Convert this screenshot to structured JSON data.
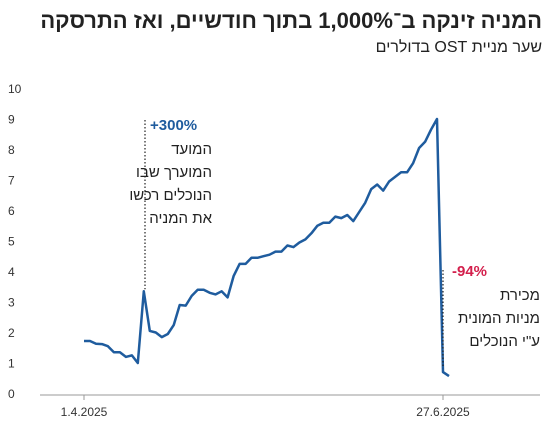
{
  "chart_data": {
    "type": "line",
    "title": "המניה זינקה ב־1,000% בתוך חודשיים, ואז התרסקה",
    "subtitle": "שער מניית OST בדולרים",
    "categories": [
      "1.4.2025",
      null,
      null,
      null,
      null,
      null,
      null,
      null,
      null,
      null,
      null,
      null,
      null,
      null,
      null,
      null,
      null,
      null,
      null,
      null,
      null,
      null,
      null,
      null,
      null,
      null,
      null,
      null,
      null,
      null,
      null,
      null,
      null,
      null,
      null,
      null,
      null,
      null,
      null,
      null,
      null,
      null,
      null,
      null,
      null,
      null,
      null,
      null,
      null,
      null,
      null,
      null,
      null,
      null,
      null,
      null,
      null,
      null,
      null,
      null,
      "27.6.2025",
      null
    ],
    "values": [
      1.77,
      1.77,
      1.68,
      1.67,
      1.6,
      1.4,
      1.4,
      1.25,
      1.3,
      1.05,
      3.4,
      2.1,
      2.05,
      1.9,
      2.0,
      2.3,
      2.95,
      2.93,
      3.25,
      3.45,
      3.45,
      3.35,
      3.3,
      3.4,
      3.2,
      3.9,
      4.3,
      4.3,
      4.5,
      4.5,
      4.55,
      4.6,
      4.7,
      4.7,
      4.9,
      4.85,
      5.0,
      5.1,
      5.3,
      5.55,
      5.65,
      5.65,
      5.85,
      5.8,
      5.9,
      5.7,
      6.0,
      6.3,
      6.75,
      6.9,
      6.7,
      7.0,
      7.15,
      7.3,
      7.3,
      7.6,
      8.1,
      8.3,
      8.7,
      9.05,
      0.75,
      0.62
    ],
    "color": "#1f5c9e",
    "ylim": [
      0,
      10
    ],
    "yticks": [
      0,
      1,
      2,
      3,
      4,
      5,
      6,
      7,
      8,
      9,
      10
    ],
    "annotations": [
      {
        "label": "+300%",
        "color": "#1f5c9e",
        "lines": [
          "המועד",
          "המוערך שבו",
          "הנוכלים רכשו",
          "את המניה"
        ]
      },
      {
        "label": "-94%",
        "color": "#d31f4c",
        "lines": [
          "מכירת",
          "מניות המונית",
          "ע\"י הנוכלים"
        ]
      }
    ]
  }
}
